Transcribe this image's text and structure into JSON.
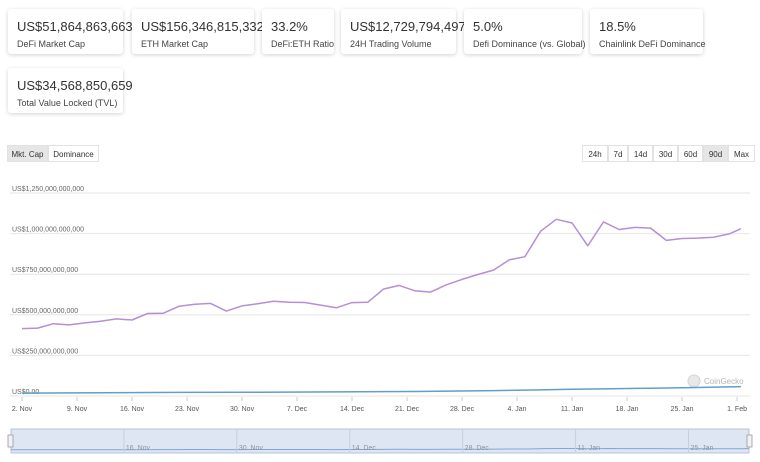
{
  "stats": [
    {
      "value": "US$51,864,863,663",
      "label": "DeFi Market Cap"
    },
    {
      "value": "US$156,346,815,332",
      "label": "ETH Market Cap"
    },
    {
      "value": "33.2%",
      "label": "DeFi:ETH Ratio"
    },
    {
      "value": "US$12,729,794,497",
      "label": "24H Trading Volume"
    },
    {
      "value": "5.0%",
      "label": "Defi Dominance (vs. Global)"
    },
    {
      "value": "18.5%",
      "label": "Chainlink DeFi Dominance"
    },
    {
      "value": "US$34,568,850,659",
      "label": "Total Value Locked (TVL)"
    }
  ],
  "view_tabs": {
    "mktcap": "Mkt. Cap",
    "dominance": "Dominance",
    "active": "mktcap"
  },
  "range_tabs": {
    "items": [
      "24h",
      "7d",
      "14d",
      "30d",
      "60d",
      "90d",
      "Max"
    ],
    "active": "90d"
  },
  "watermark": "CoinGecko",
  "colors": {
    "line_main": "#b48fd6",
    "line_secondary": "#5f9fc9",
    "navigator_fill": "#dfe6f3"
  },
  "chart_data": {
    "type": "line",
    "y_ticks": [
      "US$0.00",
      "US$250,000,000,000",
      "US$500,000,000,000",
      "US$750,000,000,000",
      "US$1,000,000,000,000",
      "US$1,250,000,000,000"
    ],
    "ylim": [
      0,
      1250000000000
    ],
    "grid": true,
    "x_ticks": [
      "2. Nov",
      "9. Nov",
      "16. Nov",
      "23. Nov",
      "30. Nov",
      "7. Dec",
      "14. Dec",
      "21. Dec",
      "28. Dec",
      "4. Jan",
      "11. Jan",
      "18. Jan",
      "25. Jan",
      "1. Feb"
    ],
    "x_tick_days": [
      0,
      7,
      14,
      21,
      28,
      35,
      42,
      49,
      56,
      63,
      70,
      77,
      84,
      91
    ],
    "navigator_ticks": [
      "16. Nov",
      "30. Nov",
      "14. Dec",
      "28. Dec",
      "11. Jan",
      "25. Jan"
    ],
    "navigator_tick_days": [
      14,
      28,
      42,
      56,
      70,
      84
    ],
    "series": [
      {
        "x": [
          0,
          2,
          4,
          6,
          8,
          10,
          12,
          14,
          16,
          18,
          20,
          22,
          24,
          26,
          28,
          30,
          32,
          34,
          36,
          38,
          40,
          42,
          44,
          46,
          48,
          50,
          52,
          54,
          56,
          58,
          60,
          62,
          64,
          66,
          68,
          70,
          72,
          74,
          76,
          78,
          80,
          82,
          84,
          86,
          88,
          90,
          91.5
        ],
        "values": [
          415,
          418,
          445,
          438,
          450,
          460,
          475,
          468,
          508,
          510,
          553,
          565,
          570,
          523,
          555,
          568,
          583,
          577,
          576,
          560,
          543,
          575,
          577,
          658,
          681,
          648,
          640,
          685,
          718,
          748,
          775,
          838,
          858,
          1015,
          1088,
          1065,
          925,
          1072,
          1025,
          1038,
          1034,
          958,
          970,
          972,
          978,
          998,
          1030
        ]
      },
      {
        "x": [
          0,
          10,
          20,
          30,
          40,
          50,
          60,
          65,
          70,
          75,
          80,
          85,
          91.5
        ],
        "values": [
          18,
          20,
          22,
          23,
          25,
          28,
          33,
          37,
          42,
          45,
          48,
          52,
          58
        ]
      }
    ]
  }
}
